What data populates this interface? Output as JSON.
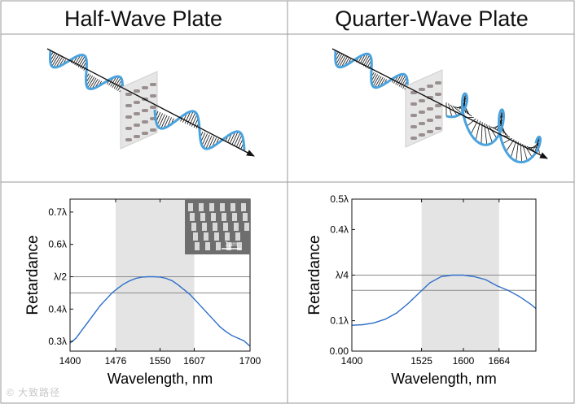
{
  "titles": {
    "left": "Half-Wave Plate",
    "right": "Quarter-Wave Plate"
  },
  "scale_bar_label": "1μm",
  "watermark": "© 大致路径",
  "colors": {
    "wave": "#4aa3de",
    "curve": "#2f6fc9",
    "band": "#e4e4e4",
    "grid_line": "#8a8a8a"
  },
  "chart_data": [
    {
      "type": "line",
      "title": "Half-Wave Plate",
      "xlabel": "Wavelength, nm",
      "ylabel": "Retardance",
      "xlim": [
        1400,
        1700
      ],
      "ylim": [
        0.27,
        0.74
      ],
      "xticks": [
        {
          "value": 1400,
          "label": "1400"
        },
        {
          "value": 1476,
          "label": "1476"
        },
        {
          "value": 1550,
          "label": "1550"
        },
        {
          "value": 1607,
          "label": "1607"
        },
        {
          "value": 1700,
          "label": "1700"
        }
      ],
      "yticks": [
        {
          "value": 0.3,
          "label": "0.3λ"
        },
        {
          "value": 0.4,
          "label": "0.4λ"
        },
        {
          "value": 0.5,
          "label": "λ/2"
        },
        {
          "value": 0.6,
          "label": "0.6λ"
        },
        {
          "value": 0.7,
          "label": "0.7λ"
        }
      ],
      "band": [
        1476,
        1607
      ],
      "hlines": [
        0.5,
        0.45
      ],
      "series": [
        {
          "x": [
            1400,
            1410,
            1420,
            1430,
            1440,
            1450,
            1460,
            1470,
            1480,
            1490,
            1500,
            1510,
            1520,
            1530,
            1540,
            1550,
            1560,
            1570,
            1580,
            1590,
            1600,
            1610,
            1620,
            1630,
            1640,
            1650,
            1660,
            1670,
            1680,
            1690,
            1700
          ],
          "y": [
            0.295,
            0.31,
            0.335,
            0.36,
            0.385,
            0.41,
            0.43,
            0.45,
            0.465,
            0.478,
            0.488,
            0.495,
            0.499,
            0.5,
            0.5,
            0.499,
            0.495,
            0.488,
            0.475,
            0.46,
            0.445,
            0.425,
            0.405,
            0.385,
            0.365,
            0.345,
            0.33,
            0.318,
            0.31,
            0.302,
            0.285
          ]
        }
      ]
    },
    {
      "type": "line",
      "title": "Quarter-Wave Plate",
      "xlabel": "Wavelength, nm",
      "ylabel": "Retardance",
      "xlim": [
        1400,
        1730
      ],
      "ylim": [
        0.0,
        0.5
      ],
      "xticks": [
        {
          "value": 1400,
          "label": "1400"
        },
        {
          "value": 1525,
          "label": "1525"
        },
        {
          "value": 1600,
          "label": "1600"
        },
        {
          "value": 1664,
          "label": "1664"
        }
      ],
      "yticks": [
        {
          "value": 0.0,
          "label": "0.00"
        },
        {
          "value": 0.1,
          "label": "0.1λ"
        },
        {
          "value": 0.25,
          "label": "λ/4"
        },
        {
          "value": 0.4,
          "label": "0.4λ"
        },
        {
          "value": 0.5,
          "label": "0.5λ"
        }
      ],
      "band": [
        1525,
        1664
      ],
      "hlines": [
        0.25,
        0.2
      ],
      "series": [
        {
          "x": [
            1400,
            1420,
            1440,
            1460,
            1480,
            1500,
            1520,
            1540,
            1560,
            1580,
            1600,
            1620,
            1640,
            1660,
            1680,
            1700,
            1720,
            1730
          ],
          "y": [
            0.085,
            0.087,
            0.093,
            0.105,
            0.125,
            0.155,
            0.19,
            0.225,
            0.245,
            0.25,
            0.25,
            0.245,
            0.235,
            0.215,
            0.2,
            0.18,
            0.155,
            0.14
          ]
        }
      ]
    }
  ]
}
